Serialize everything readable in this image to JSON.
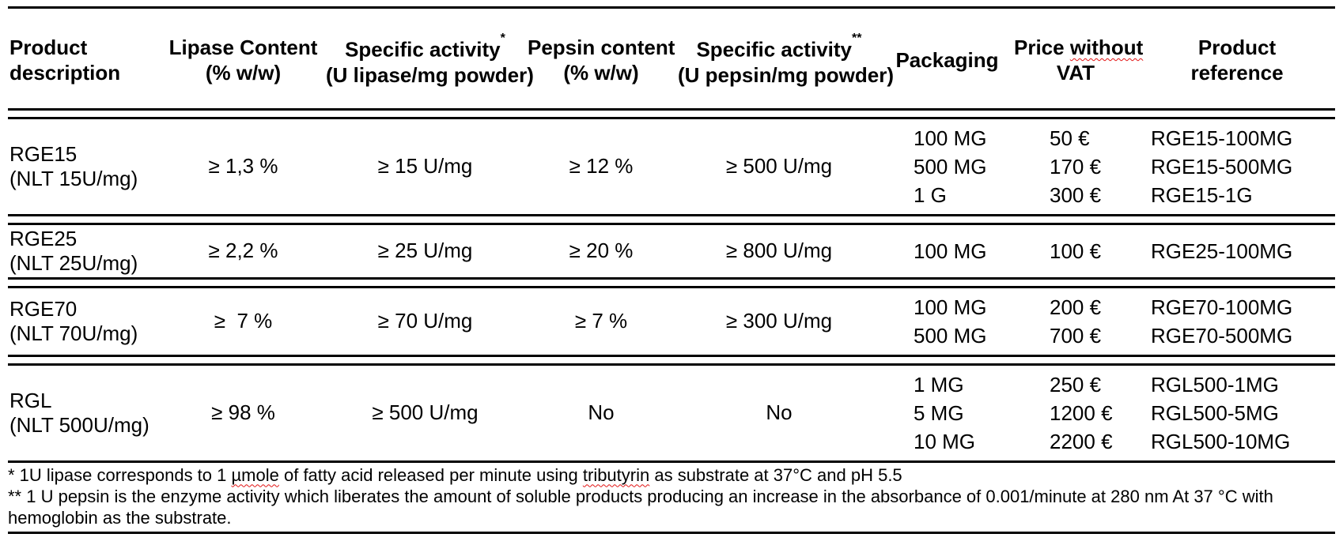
{
  "table": {
    "headers": [
      {
        "id": "product-description",
        "align": "left",
        "lines": [
          [
            {
              "t": "Product"
            }
          ],
          [
            {
              "t": "description"
            }
          ]
        ]
      },
      {
        "id": "lipase-content",
        "lines": [
          [
            {
              "t": "Lipase Content"
            }
          ],
          [
            {
              "t": "(% w/w)"
            }
          ]
        ]
      },
      {
        "id": "specific-activity-lipase",
        "lines": [
          [
            {
              "t": "Specific activity"
            },
            {
              "t": "*",
              "sup": true
            }
          ],
          [
            {
              "t": "(U lipase/mg powder)"
            }
          ]
        ]
      },
      {
        "id": "pepsin-content",
        "lines": [
          [
            {
              "t": "Pepsin content"
            }
          ],
          [
            {
              "t": "(% w/w)"
            }
          ]
        ]
      },
      {
        "id": "specific-activity-pepsin",
        "lines": [
          [
            {
              "t": "Specific activity"
            },
            {
              "t": "**",
              "sup": true
            }
          ],
          [
            {
              "t": "(U pepsin/mg powder)"
            }
          ]
        ]
      },
      {
        "id": "packaging",
        "lines": [
          [
            {
              "t": "Packaging"
            }
          ]
        ]
      },
      {
        "id": "price-without-vat",
        "lines": [
          [
            {
              "t": "Price "
            },
            {
              "t": "without",
              "flag": true
            }
          ],
          [
            {
              "t": "VAT"
            }
          ]
        ]
      },
      {
        "id": "product-reference",
        "lines": [
          [
            {
              "t": "Product"
            }
          ],
          [
            {
              "t": "reference"
            }
          ]
        ]
      }
    ],
    "rows": [
      {
        "product_lines": [
          "RGE15",
          "(NLT 15U/mg)"
        ],
        "lipase_content": "≥ 1,3 %",
        "specific_activity_lipase": "≥ 15 U/mg",
        "pepsin_content": "≥ 12 %",
        "specific_activity_pepsin": "≥ 500 U/mg",
        "options": [
          {
            "packaging": "100 MG",
            "price": "50 €",
            "reference": "RGE15-100MG"
          },
          {
            "packaging": "500 MG",
            "price": "170 €",
            "reference": "RGE15-500MG"
          },
          {
            "packaging": "1 G",
            "price": "300 €",
            "reference": "RGE15-1G"
          }
        ]
      },
      {
        "product_lines": [
          "RGE25",
          "(NLT 25U/mg)"
        ],
        "lipase_content": "≥ 2,2 %",
        "specific_activity_lipase": "≥ 25 U/mg",
        "pepsin_content": "≥ 20 %",
        "specific_activity_pepsin": "≥ 800 U/mg",
        "options": [
          {
            "packaging": "100 MG",
            "price": "100 €",
            "reference": "RGE25-100MG"
          }
        ]
      },
      {
        "product_lines": [
          "RGE70",
          "(NLT 70U/mg)"
        ],
        "lipase_content": "≥  7 %",
        "specific_activity_lipase": "≥ 70 U/mg",
        "pepsin_content": "≥ 7 %",
        "specific_activity_pepsin": "≥ 300 U/mg",
        "options": [
          {
            "packaging": "100 MG",
            "price": "200 €",
            "reference": "RGE70-100MG"
          },
          {
            "packaging": "500 MG",
            "price": "700 €",
            "reference": "RGE70-500MG"
          }
        ]
      },
      {
        "product_lines": [
          "RGL",
          "(NLT 500U/mg)"
        ],
        "lipase_content": "≥ 98 %",
        "specific_activity_lipase": "≥ 500 U/mg",
        "pepsin_content": "No",
        "specific_activity_pepsin": "No",
        "options": [
          {
            "packaging": "1 MG",
            "price": "250 €",
            "reference": "RGL500-1MG"
          },
          {
            "packaging": "5 MG",
            "price": "1200 €",
            "reference": "RGL500-5MG"
          },
          {
            "packaging": "10 MG",
            "price": "2200 €",
            "reference": "RGL500-10MG"
          }
        ]
      }
    ]
  },
  "footnotes": [
    [
      {
        "t": "* 1U lipase corresponds to 1 "
      },
      {
        "t": "µmole",
        "flag": true
      },
      {
        "t": " of fatty acid released per minute using "
      },
      {
        "t": "tributyrin",
        "flag": true
      },
      {
        "t": " as substrate at 37°C and pH 5.5"
      }
    ],
    [
      {
        "t": "** 1 U pepsin is the enzyme activity which liberates the amount of soluble products producing an increase in the absorbance of 0.001/minute at 280 nm At 37 °C with hemoglobin as the substrate."
      }
    ]
  ],
  "colors": {
    "text": "#000000",
    "rule": "#000000",
    "spellcheck_squiggle": "#e21313",
    "background": "#ffffff"
  }
}
